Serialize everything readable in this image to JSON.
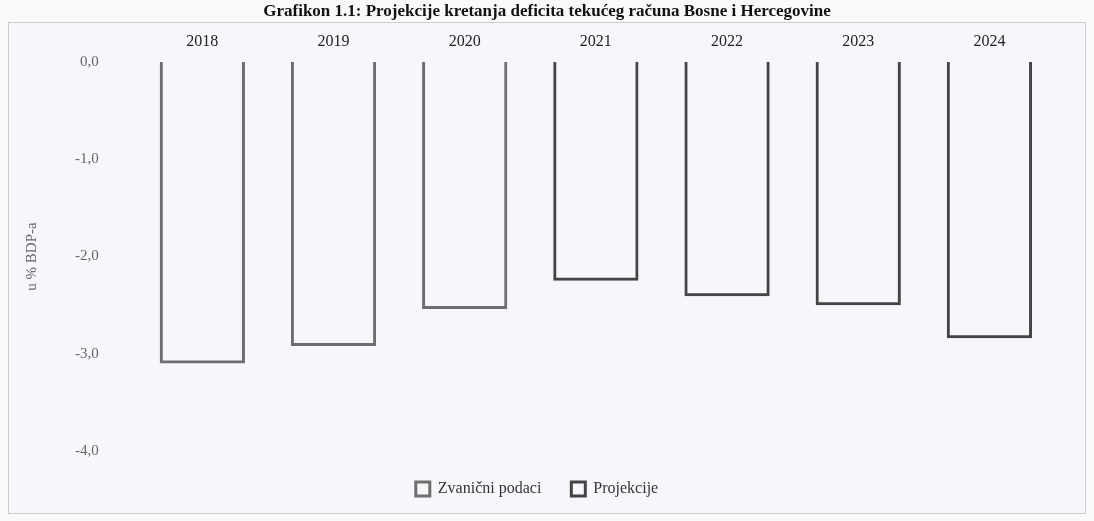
{
  "chart_data": {
    "type": "bar",
    "title": "Grafikon 1.1: Projekcije kretanja deficita tekućeg računa Bosne i Hercegovine",
    "ylabel": "u % BDP-a",
    "categories": [
      "2018",
      "2019",
      "2020",
      "2021",
      "2022",
      "2023",
      "2024"
    ],
    "series": [
      {
        "name": "Zvanični podaci",
        "color": "#6e6e6e",
        "values": [
          -3.1,
          -2.92,
          -2.54,
          null,
          null,
          null,
          null
        ]
      },
      {
        "name": "Projekcije",
        "color": "#444444",
        "values": [
          null,
          null,
          null,
          -2.25,
          -2.41,
          -2.5,
          -2.84
        ]
      }
    ],
    "ylim": [
      -4,
      0
    ],
    "yticks": [
      {
        "value": -4,
        "label": "-4,0"
      },
      {
        "value": -3,
        "label": "-3,0"
      },
      {
        "value": -2,
        "label": "-2,0"
      },
      {
        "value": -1,
        "label": "-1,0"
      },
      {
        "value": 0,
        "label": "0,0"
      }
    ],
    "grid": false,
    "legend": "bottom"
  }
}
